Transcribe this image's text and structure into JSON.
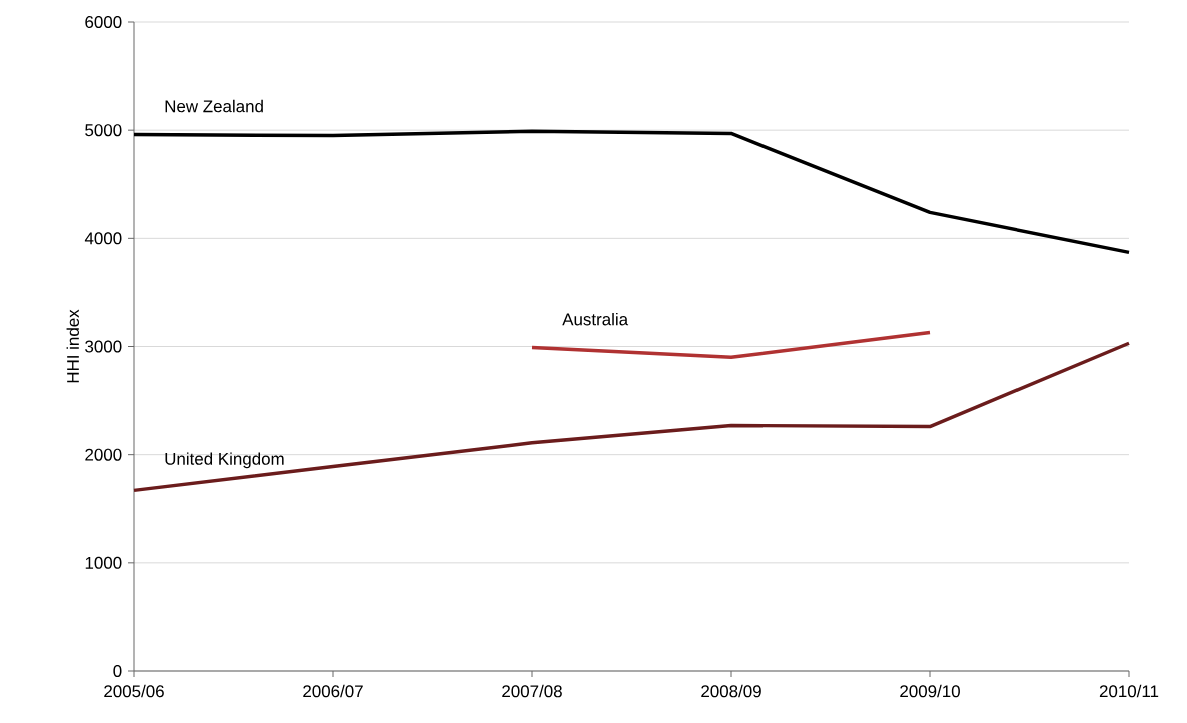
{
  "chart_data": {
    "type": "line",
    "ylabel": "HHI index",
    "categories": [
      "2005/06",
      "2006/07",
      "2007/08",
      "2008/09",
      "2009/10",
      "2010/11"
    ],
    "series": [
      {
        "name": "New Zealand",
        "color": "#000000",
        "values": [
          4960,
          4950,
          4990,
          4970,
          4240,
          3870
        ]
      },
      {
        "name": "Australia",
        "color": "#b03232",
        "values": [
          null,
          null,
          2990,
          2900,
          3130,
          null
        ]
      },
      {
        "name": "United Kingdom",
        "color": "#6b1c1c",
        "values": [
          1670,
          1890,
          2110,
          2270,
          2260,
          3030
        ]
      }
    ],
    "ylim": [
      0,
      6000
    ],
    "yticks": [
      0,
      1000,
      2000,
      3000,
      4000,
      5000,
      6000
    ],
    "grid": "y",
    "legend": false,
    "line_style": "solid",
    "marker": "none"
  }
}
